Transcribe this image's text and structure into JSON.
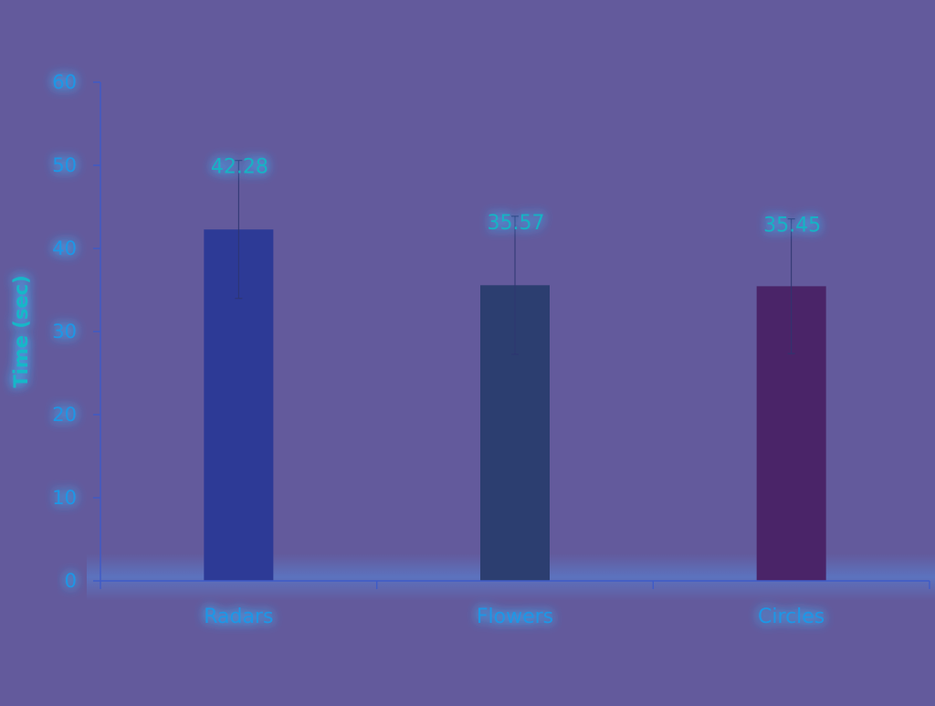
{
  "colors": {
    "background": "#635a9c",
    "axis": "#3e5bc8",
    "tick_text": "#1f97e6",
    "label_text": "#14b3c4",
    "glow": "#3fb8ff"
  },
  "chart_data": {
    "type": "bar",
    "title": "",
    "xlabel": "",
    "ylabel": "Time (sec)",
    "ylim": [
      0,
      60
    ],
    "yticks": [
      0,
      10,
      20,
      30,
      40,
      50,
      60
    ],
    "ytick_labels": [
      "0",
      "10",
      "20",
      "30",
      "40",
      "50",
      "60"
    ],
    "grid": false,
    "legend": "none",
    "categories": [
      "Radars",
      "Flowers",
      "Circles"
    ],
    "values": [
      42.28,
      35.57,
      35.45
    ],
    "value_labels": [
      "42.28",
      "35.57",
      "35.45"
    ],
    "error": [
      8.3,
      8.3,
      8.1
    ],
    "bar_colors": [
      "#2d3a96",
      "#2c3e70",
      "#4a2468"
    ]
  }
}
